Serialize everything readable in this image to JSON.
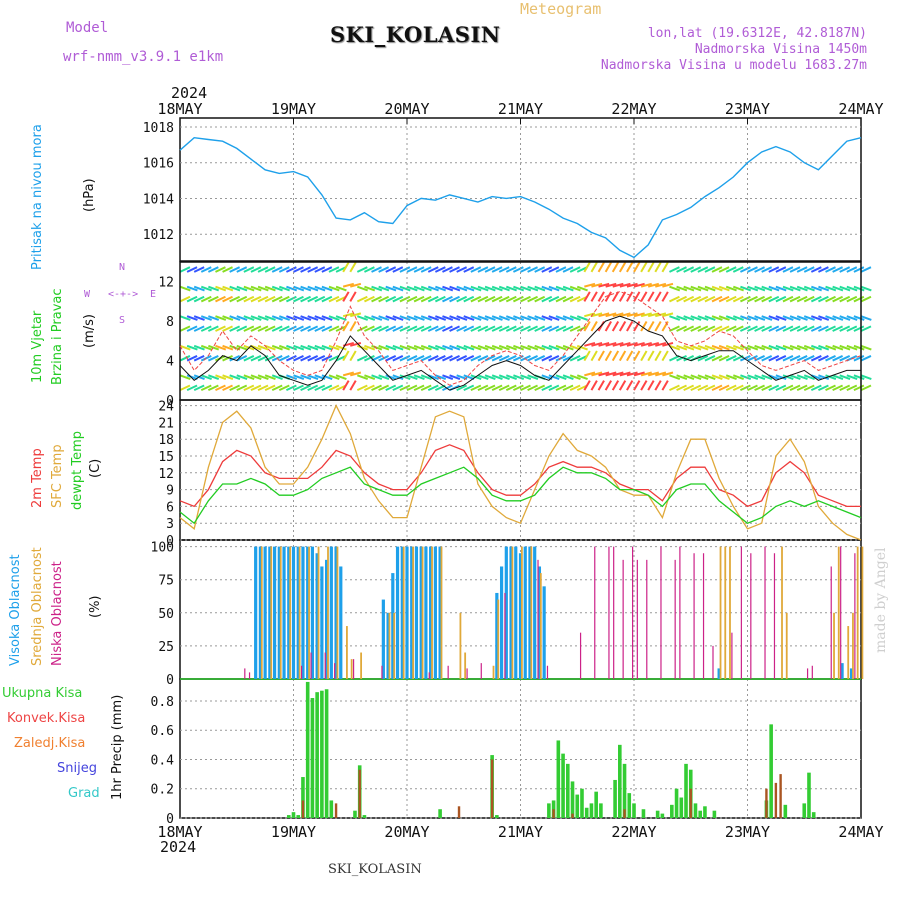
{
  "header": {
    "model_label": "Model",
    "model_name": "wrf-nmm_v3.9.1 e1km",
    "station": "SKI_KOLASIN",
    "meteogram": "Meteogram",
    "lonlat": "lon,lat (19.6312E, 42.8187N)",
    "altitude": "Nadmorska Visina 1450m",
    "model_altitude": "Nadmorska Visina u modelu 1683.27m",
    "year": "2024",
    "credit": "made by Angel",
    "footer_station": "SKI_KOLASIN"
  },
  "colors": {
    "pressure": "#1ea0ea",
    "temp2m": "#ee3b3b",
    "sfc": "#e0a93a",
    "dewpt": "#22cc22",
    "high_cloud": "#1ea0ea",
    "mid_cloud": "#e0a93a",
    "low_cloud": "#cc2288",
    "total_precip": "#33cc33",
    "conv_precip": "#ee4444",
    "frozen_precip": "#f08030",
    "snow": "#4444dd",
    "hail": "#33c8c8"
  },
  "chart_data": [
    {
      "type": "line",
      "name": "pressure",
      "ylabel_left": "Pritisak na nivou mora",
      "ylabel": "(hPa)",
      "ylim": [
        1010.5,
        1018.5
      ],
      "ticks": [
        "1012",
        "1014",
        "1016",
        "1018"
      ],
      "x_ticks": [
        "18MAY",
        "19MAY",
        "20MAY",
        "21MAY",
        "22MAY",
        "23MAY",
        "24MAY"
      ],
      "x_hours": [
        0,
        3,
        6,
        9,
        12,
        15,
        18,
        21,
        24,
        27,
        30,
        33,
        36,
        39,
        42,
        45,
        48,
        51,
        54,
        57,
        60,
        63,
        66,
        69,
        72,
        75,
        78,
        81,
        84,
        87,
        90,
        93,
        96,
        99,
        102,
        105,
        108,
        111,
        114,
        117,
        120,
        123,
        126,
        129,
        132,
        135,
        138,
        141,
        144
      ],
      "values": [
        1016.7,
        1017.4,
        1017.3,
        1017.2,
        1016.8,
        1016.2,
        1015.6,
        1015.4,
        1015.5,
        1015.2,
        1014.2,
        1012.9,
        1012.8,
        1013.2,
        1012.7,
        1012.6,
        1013.6,
        1014.0,
        1013.9,
        1014.2,
        1014.0,
        1013.8,
        1014.1,
        1014.0,
        1014.1,
        1013.8,
        1013.4,
        1012.9,
        1012.6,
        1012.1,
        1011.8,
        1011.1,
        1010.7,
        1011.4,
        1012.8,
        1013.1,
        1013.5,
        1014.1,
        1014.6,
        1015.2,
        1016.0,
        1016.6,
        1016.9,
        1016.6,
        1016.0,
        1015.6,
        1016.4,
        1017.2,
        1017.4
      ]
    },
    {
      "type": "line",
      "name": "wind",
      "ylabel_left": "10m Vjetar",
      "ylabel_left2": "Brzina i Pravac",
      "ylabel": "(m/s)",
      "ylim": [
        0,
        14
      ],
      "ticks": [
        "0",
        "4",
        "8",
        "12"
      ],
      "compass": [
        "W",
        "<-+->",
        "E",
        "S",
        "N"
      ],
      "x_hours": [
        0,
        3,
        6,
        9,
        12,
        15,
        18,
        21,
        24,
        27,
        30,
        33,
        36,
        39,
        42,
        45,
        48,
        51,
        54,
        57,
        60,
        63,
        66,
        69,
        72,
        75,
        78,
        81,
        84,
        87,
        90,
        93,
        96,
        99,
        102,
        105,
        108,
        111,
        114,
        117,
        120,
        123,
        126,
        129,
        132,
        135,
        138,
        141,
        144
      ],
      "series": [
        {
          "values": [
            5.5,
            3.0,
            4.5,
            7.0,
            5.0,
            6.5,
            5.5,
            4.0,
            3.0,
            2.5,
            3.0,
            6.0,
            9.5,
            6.5,
            5.0,
            3.0,
            3.5,
            4.0,
            2.5,
            1.5,
            2.0,
            3.5,
            4.5,
            5.0,
            4.5,
            3.5,
            3.0,
            4.5,
            6.5,
            8.5,
            10.5,
            11.0,
            10.5,
            9.5,
            8.5,
            6.0,
            5.5,
            6.0,
            7.0,
            6.5,
            5.0,
            3.5,
            3.0,
            3.5,
            4.0,
            3.0,
            3.5,
            4.0,
            4.5
          ]
        },
        {
          "values": [
            3.5,
            2.0,
            3.0,
            4.5,
            4.0,
            5.5,
            4.5,
            2.5,
            2.0,
            1.5,
            2.0,
            4.0,
            6.5,
            5.0,
            3.5,
            2.0,
            2.5,
            3.0,
            2.0,
            1.0,
            1.5,
            2.5,
            3.5,
            4.0,
            3.5,
            2.5,
            2.0,
            3.5,
            5.0,
            6.5,
            8.0,
            8.5,
            8.0,
            7.0,
            6.5,
            4.5,
            4.0,
            4.5,
            5.0,
            5.0,
            4.0,
            3.0,
            2.0,
            2.5,
            3.0,
            2.0,
            2.5,
            3.0,
            3.0
          ]
        }
      ]
    },
    {
      "type": "line",
      "name": "temperature",
      "ylabel_left": "2m Temp",
      "ylabel_left2": "SFC Temp",
      "ylabel_left3": "dewpt Temp",
      "ylabel": "(C)",
      "ylim": [
        0,
        25
      ],
      "ticks": [
        "0",
        "3",
        "6",
        "9",
        "12",
        "15",
        "18",
        "21",
        "24"
      ],
      "x_hours": [
        0,
        3,
        6,
        9,
        12,
        15,
        18,
        21,
        24,
        27,
        30,
        33,
        36,
        39,
        42,
        45,
        48,
        51,
        54,
        57,
        60,
        63,
        66,
        69,
        72,
        75,
        78,
        81,
        84,
        87,
        90,
        93,
        96,
        99,
        102,
        105,
        108,
        111,
        114,
        117,
        120,
        123,
        126,
        129,
        132,
        135,
        138,
        141,
        144
      ],
      "series": [
        {
          "name": "2m Temp",
          "values": [
            7,
            6,
            9,
            14,
            16,
            15,
            12,
            11,
            11,
            11,
            13,
            16,
            15,
            12,
            10,
            9,
            9,
            12,
            16,
            17,
            16,
            12,
            9,
            8,
            8,
            10,
            13,
            14,
            13,
            13,
            12,
            10,
            9,
            9,
            7,
            11,
            13,
            13,
            9,
            8,
            6,
            7,
            12,
            14,
            12,
            8,
            7,
            6,
            6
          ]
        },
        {
          "name": "SFC Temp",
          "values": [
            4,
            2,
            13,
            21,
            23,
            20,
            13,
            10,
            10,
            13,
            18,
            24,
            19,
            11,
            7,
            4,
            4,
            13,
            22,
            23,
            22,
            10,
            6,
            4,
            3,
            9,
            15,
            19,
            16,
            15,
            13,
            9,
            8,
            8,
            4,
            12,
            18,
            18,
            11,
            6,
            2,
            3,
            15,
            18,
            14,
            6,
            3,
            1,
            0
          ]
        },
        {
          "name": "dewpt Temp",
          "values": [
            5,
            3,
            7,
            10,
            10,
            11,
            10,
            8,
            8,
            9,
            11,
            12,
            13,
            10,
            9,
            8,
            8,
            10,
            11,
            12,
            13,
            11,
            8,
            7,
            7,
            8,
            11,
            13,
            12,
            12,
            11,
            9,
            9,
            8,
            6,
            9,
            10,
            10,
            7,
            5,
            3,
            4,
            6,
            7,
            6,
            7,
            6,
            5,
            4
          ]
        }
      ]
    },
    {
      "type": "bar",
      "name": "clouds",
      "ylabel_left": "Visoka Oblacnost",
      "ylabel_left2": "Srednja Oblacnost",
      "ylabel_left3": "Niska Oblacnost",
      "ylabel": "(%)",
      "ylim": [
        0,
        100
      ],
      "ticks": [
        "0",
        "25",
        "50",
        "75",
        "100"
      ],
      "series": [
        {
          "name": "Visoka Oblacnost",
          "x": [
            16,
            17,
            18,
            19,
            20,
            21,
            22,
            23,
            24,
            25,
            26,
            27,
            28,
            29,
            30,
            31,
            32,
            33,
            34,
            43,
            44,
            45,
            46,
            47,
            48,
            49,
            50,
            51,
            52,
            53,
            54,
            55,
            67,
            68,
            69,
            70,
            71,
            72,
            73,
            74,
            75,
            76,
            77,
            114,
            140,
            142
          ],
          "values": [
            100,
            100,
            100,
            100,
            100,
            100,
            100,
            100,
            100,
            100,
            100,
            100,
            100,
            95,
            85,
            90,
            100,
            100,
            85,
            60,
            50,
            80,
            100,
            100,
            100,
            100,
            100,
            100,
            100,
            100,
            100,
            100,
            65,
            85,
            100,
            100,
            100,
            95,
            100,
            100,
            100,
            85,
            70,
            8,
            12,
            8
          ]
        },
        {
          "name": "Srednja Oblacnost",
          "x": [
            17,
            19,
            21,
            23,
            25,
            27,
            29,
            31,
            33,
            35,
            36,
            38,
            44,
            45,
            47,
            49,
            51,
            53,
            55,
            59,
            60,
            66,
            67,
            70,
            72,
            74,
            76,
            114,
            115,
            116,
            127,
            128,
            138,
            139,
            141,
            142,
            143,
            144
          ],
          "values": [
            100,
            100,
            100,
            100,
            100,
            100,
            100,
            100,
            100,
            40,
            15,
            20,
            50,
            50,
            100,
            100,
            100,
            100,
            100,
            50,
            20,
            10,
            60,
            100,
            100,
            100,
            80,
            100,
            100,
            100,
            100,
            50,
            50,
            100,
            40,
            50,
            100,
            100
          ]
        },
        {
          "name": "Niska Oblacnost",
          "x": [
            14,
            15,
            26,
            28,
            31,
            33,
            37,
            43,
            53,
            57,
            61,
            64,
            69,
            76,
            78,
            85,
            88,
            91,
            92,
            94,
            96,
            97,
            99,
            102,
            105,
            106,
            109,
            111,
            113,
            117,
            119,
            121,
            124,
            126,
            133,
            134,
            138,
            140,
            143
          ],
          "values": [
            8,
            5,
            10,
            20,
            20,
            12,
            15,
            10,
            5,
            10,
            8,
            12,
            65,
            90,
            10,
            35,
            100,
            100,
            100,
            90,
            100,
            90,
            90,
            100,
            90,
            100,
            95,
            95,
            25,
            35,
            100,
            95,
            100,
            95,
            8,
            10,
            85,
            100,
            95
          ]
        }
      ]
    },
    {
      "type": "bar",
      "name": "precipitation",
      "ylabel_left": "Ukupna Kisa",
      "ylabel_left2": "Konvek.Kisa",
      "ylabel_left3": "Zaledj.Kisa",
      "ylabel_left4": "Snijeg",
      "ylabel_left5": "Grad",
      "ylabel": "1hr Precip (mm)",
      "ylim": [
        0,
        0.95
      ],
      "ticks": [
        "0",
        "0.2",
        "0.4",
        "0.6",
        "0.8"
      ],
      "x_ticks_bottom": [
        "18MAY",
        "19MAY",
        "20MAY",
        "21MAY",
        "22MAY",
        "23MAY",
        "24MAY"
      ],
      "series": [
        {
          "name": "Ukupna Kisa",
          "x": [
            23,
            24,
            25,
            26,
            27,
            28,
            29,
            30,
            31,
            32,
            37,
            38,
            39,
            55,
            66,
            67,
            78,
            79,
            80,
            81,
            82,
            83,
            84,
            85,
            86,
            87,
            88,
            89,
            92,
            93,
            94,
            95,
            96,
            98,
            101,
            102,
            104,
            105,
            106,
            107,
            108,
            109,
            110,
            111,
            113,
            124,
            125,
            128,
            132,
            133,
            134
          ],
          "values": [
            0.02,
            0.04,
            0.02,
            0.28,
            0.93,
            0.82,
            0.86,
            0.87,
            0.88,
            0.12,
            0.05,
            0.36,
            0.02,
            0.06,
            0.43,
            0.02,
            0.1,
            0.12,
            0.53,
            0.44,
            0.37,
            0.25,
            0.16,
            0.2,
            0.07,
            0.1,
            0.18,
            0.1,
            0.26,
            0.5,
            0.37,
            0.17,
            0.1,
            0.06,
            0.05,
            0.03,
            0.09,
            0.2,
            0.14,
            0.37,
            0.33,
            0.1,
            0.05,
            0.08,
            0.05,
            0.12,
            0.64,
            0.09,
            0.1,
            0.31,
            0.04
          ]
        },
        {
          "name": "Konvek.Kisa",
          "x": [
            26,
            33,
            38,
            59,
            66,
            79,
            83,
            94,
            108,
            124,
            126,
            127
          ],
          "values": [
            0.12,
            0.1,
            0.33,
            0.08,
            0.4,
            0.06,
            0.03,
            0.06,
            0.2,
            0.2,
            0.24,
            0.3
          ]
        }
      ]
    }
  ]
}
